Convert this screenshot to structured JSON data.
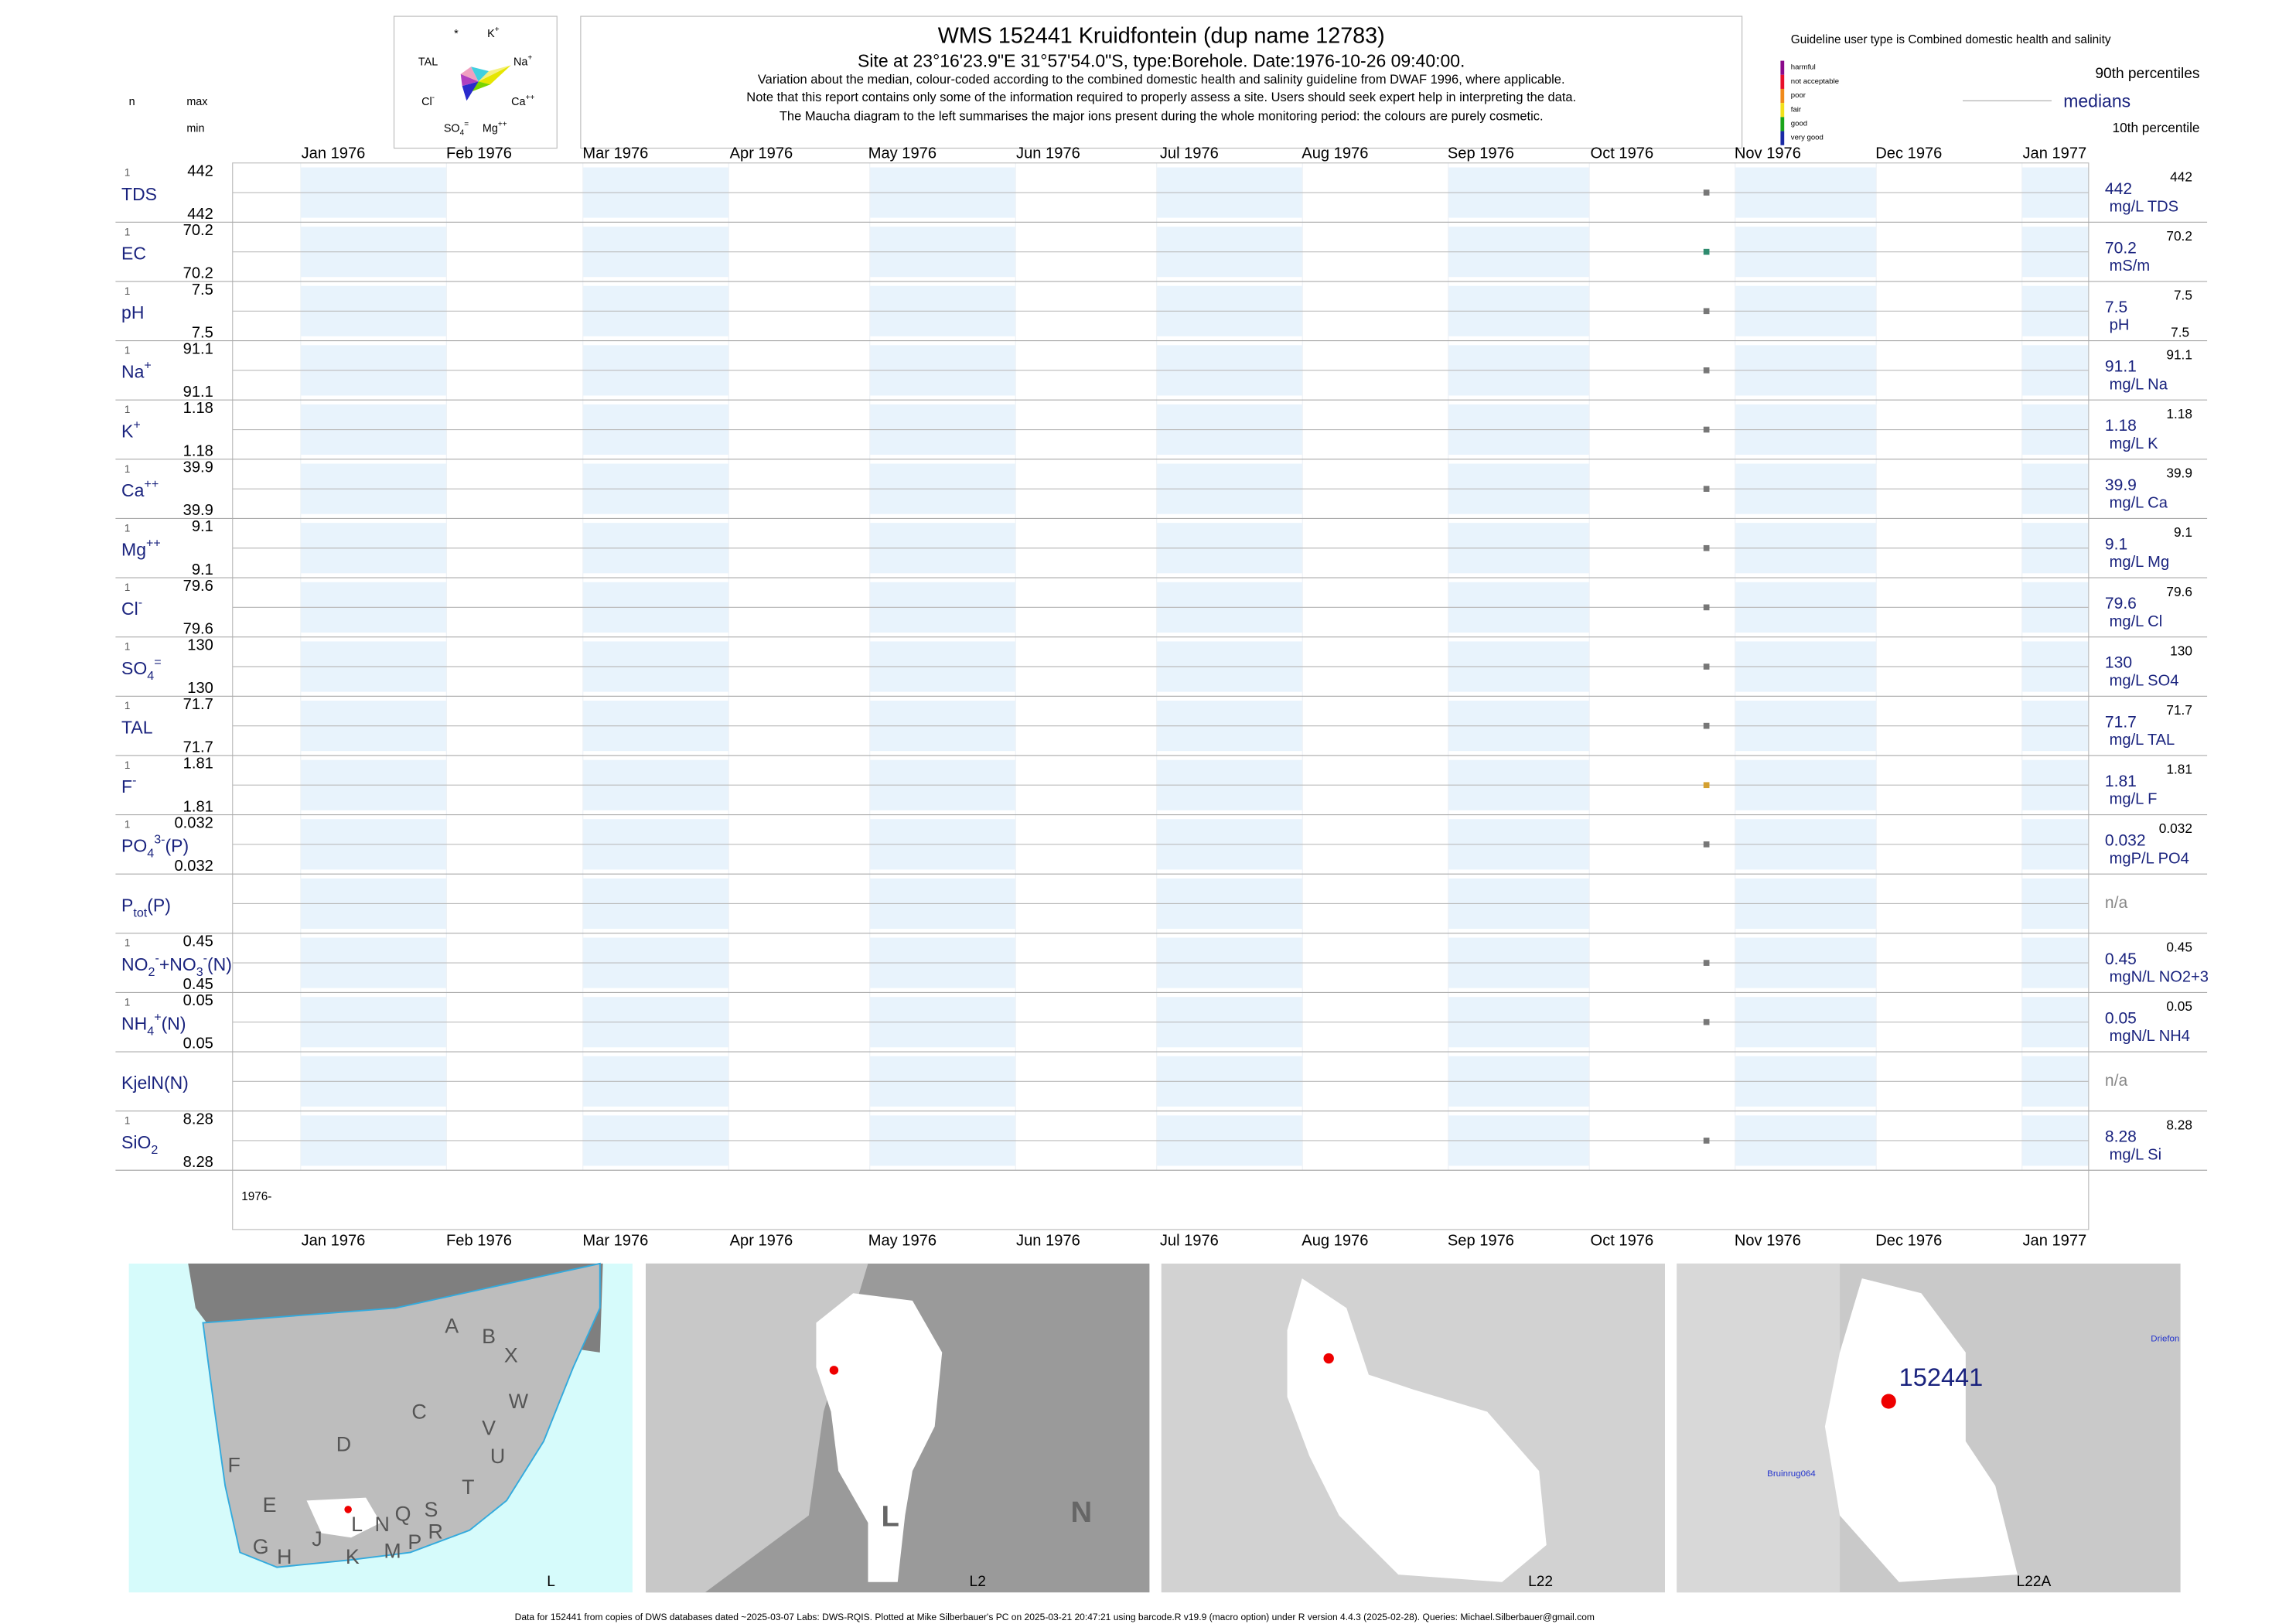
{
  "header": {
    "n_label": "n",
    "max_label": "max",
    "min_label": "min",
    "title": "WMS 152441  Kruidfontein (dup name 12783)",
    "site": "Site at 23°16'23.9\"E 31°57'54.0\"S, type:Borehole. Date:1976-10-26 09:40:00.",
    "notes": [
      "Variation about the median,  colour-coded according to the combined domestic health and salinity guideline from DWAF 1996, where applicable.",
      "Note that this report contains only some of the information required to properly assess a site. Users should seek expert help in interpreting the data.",
      "The Maucha diagram to the left summarises the major ions present during the whole monitoring period: the colours are purely cosmetic."
    ]
  },
  "maucha": {
    "labels": [
      [
        {
          "t": "*"
        }
      ],
      [
        {
          "t": "K"
        },
        {
          "t": "+",
          "v": "sup"
        }
      ],
      [
        {
          "t": "TAL"
        }
      ],
      [
        {
          "t": "Na"
        },
        {
          "t": "+",
          "v": "sup"
        }
      ],
      [
        {
          "t": "Cl"
        },
        {
          "t": "-",
          "v": "sup"
        }
      ],
      [
        {
          "t": "Ca"
        },
        {
          "t": "++",
          "v": "sup"
        }
      ],
      [
        {
          "t": "SO"
        },
        {
          "t": "4",
          "v": "sub"
        },
        {
          "t": "=",
          "v": "sup"
        }
      ],
      [
        {
          "t": "Mg"
        },
        {
          "t": "++",
          "v": "sup"
        }
      ]
    ]
  },
  "guideline": {
    "title": "Guideline user type is Combined domestic health and salinity",
    "classes": [
      {
        "label": "harmful",
        "color": "#8b0a8b"
      },
      {
        "label": "not acceptable",
        "color": "#e8102a"
      },
      {
        "label": "poor",
        "color": "#f08a1a"
      },
      {
        "label": "fair",
        "color": "#f2e01a"
      },
      {
        "label": "good",
        "color": "#1aa51a"
      },
      {
        "label": "very good",
        "color": "#1a2aa5"
      }
    ],
    "p90": "90th percentiles",
    "medians": "medians",
    "p10": "10th percentile"
  },
  "months": [
    "Jan 1976",
    "Feb 1976",
    "Mar 1976",
    "Apr 1976",
    "May 1976",
    "Jun 1976",
    "Jul 1976",
    "Aug 1976",
    "Sep 1976",
    "Oct 1976",
    "Nov 1976",
    "Dec 1976",
    "Jan 1977"
  ],
  "year_label": "1976-",
  "rows": [
    {
      "name": [
        {
          "t": "TDS"
        }
      ],
      "n": 1,
      "max": 442,
      "min": 442,
      "median": 442,
      "unit": "mg/L TDS",
      "right_max": 442,
      "color": "#777777"
    },
    {
      "name": [
        {
          "t": "EC"
        }
      ],
      "n": 1,
      "max": 70.2,
      "min": 70.2,
      "median": 70.2,
      "unit": "mS/m",
      "right_max": 70.2,
      "color": "#2e8b6e"
    },
    {
      "name": [
        {
          "t": "pH"
        }
      ],
      "n": 1,
      "max": 7.5,
      "min": 7.5,
      "median": 7.5,
      "unit": "pH",
      "right_max": 7.5,
      "right_min": 7.5,
      "color": "#777777"
    },
    {
      "name": [
        {
          "t": "Na"
        },
        {
          "t": "+",
          "v": "sup"
        }
      ],
      "n": 1,
      "max": 91.1,
      "min": 91.1,
      "median": 91.1,
      "unit": "mg/L Na",
      "right_max": 91.1,
      "color": "#777777"
    },
    {
      "name": [
        {
          "t": "K"
        },
        {
          "t": "+",
          "v": "sup"
        }
      ],
      "n": 1,
      "max": 1.18,
      "min": 1.18,
      "median": 1.18,
      "unit": "mg/L K",
      "right_max": 1.18,
      "color": "#777777"
    },
    {
      "name": [
        {
          "t": "Ca"
        },
        {
          "t": "++",
          "v": "sup"
        }
      ],
      "n": 1,
      "max": 39.9,
      "min": 39.9,
      "median": 39.9,
      "unit": "mg/L Ca",
      "right_max": 39.9,
      "color": "#777777"
    },
    {
      "name": [
        {
          "t": "Mg"
        },
        {
          "t": "++",
          "v": "sup"
        }
      ],
      "n": 1,
      "max": 9.1,
      "min": 9.1,
      "median": 9.1,
      "unit": "mg/L Mg",
      "right_max": 9.1,
      "color": "#777777"
    },
    {
      "name": [
        {
          "t": "Cl"
        },
        {
          "t": "-",
          "v": "sup"
        }
      ],
      "n": 1,
      "max": 79.6,
      "min": 79.6,
      "median": 79.6,
      "unit": "mg/L Cl",
      "right_max": 79.6,
      "color": "#777777"
    },
    {
      "name": [
        {
          "t": "SO"
        },
        {
          "t": "4",
          "v": "sub"
        },
        {
          "t": "=",
          "v": "sup"
        }
      ],
      "n": 1,
      "max": 130,
      "min": 130,
      "median": 130,
      "unit": "mg/L SO4",
      "right_max": 130,
      "color": "#777777"
    },
    {
      "name": [
        {
          "t": "TAL"
        }
      ],
      "n": 1,
      "max": 71.7,
      "min": 71.7,
      "median": 71.7,
      "unit": "mg/L TAL",
      "right_max": 71.7,
      "color": "#777777"
    },
    {
      "name": [
        {
          "t": "F"
        },
        {
          "t": "-",
          "v": "sup"
        }
      ],
      "n": 1,
      "max": 1.81,
      "min": 1.81,
      "median": 1.81,
      "unit": "mg/L F",
      "right_max": 1.81,
      "color": "#d4a030"
    },
    {
      "name": [
        {
          "t": "PO"
        },
        {
          "t": "4",
          "v": "sub"
        },
        {
          "t": "3-",
          "v": "sup"
        },
        {
          "t": "(P)"
        }
      ],
      "n": 1,
      "max": 0.032,
      "min": 0.032,
      "median": 0.032,
      "unit": "mgP/L PO4",
      "right_max": 0.032,
      "color": "#777777"
    },
    {
      "name": [
        {
          "t": "P"
        },
        {
          "t": "tot",
          "v": "sub"
        },
        {
          "t": "(P)"
        }
      ],
      "na": "n/a"
    },
    {
      "name": [
        {
          "t": "NO"
        },
        {
          "t": "2",
          "v": "sub"
        },
        {
          "t": "-",
          "v": "sup"
        },
        {
          "t": "+NO"
        },
        {
          "t": "3",
          "v": "sub"
        },
        {
          "t": "-",
          "v": "sup"
        },
        {
          "t": "(N)"
        }
      ],
      "n": 1,
      "max": 0.45,
      "min": 0.45,
      "median": 0.45,
      "unit": "mgN/L NO2+3",
      "right_max": 0.45,
      "color": "#777777"
    },
    {
      "name": [
        {
          "t": "NH"
        },
        {
          "t": "4",
          "v": "sub"
        },
        {
          "t": "+",
          "v": "sup"
        },
        {
          "t": "(N)"
        }
      ],
      "n": 1,
      "max": 0.05,
      "min": 0.05,
      "median": 0.05,
      "unit": "mgN/L NH4",
      "right_max": 0.05,
      "color": "#777777"
    },
    {
      "name": [
        {
          "t": "KjelN(N)"
        }
      ],
      "na": "n/a"
    },
    {
      "name": [
        {
          "t": "SiO"
        },
        {
          "t": "2",
          "v": "sub"
        }
      ],
      "n": 1,
      "max": 8.28,
      "min": 8.28,
      "median": 8.28,
      "unit": "mg/L Si",
      "right_max": 8.28,
      "color": "#777777"
    }
  ],
  "maps": [
    {
      "label": "L",
      "letters": [
        "A",
        "B",
        "X",
        "C",
        "W",
        "V",
        "U",
        "D",
        "T",
        "F",
        "E",
        "S",
        "R",
        "Q",
        "N",
        "P",
        "M",
        "L",
        "K",
        "J",
        "H",
        "G"
      ]
    },
    {
      "label": "L2",
      "letters": [
        "L",
        "N"
      ]
    },
    {
      "label": "L22"
    },
    {
      "label": "L22A",
      "site": "152441",
      "places": [
        "Bruinrug064",
        "Driefon"
      ]
    }
  ],
  "footer": "Data for 152441 from copies of DWS databases dated ~2025-03-07 Labs: DWS-RQIS. Plotted at Mike Silberbauer's PC on 2025-03-21 20:47:21 using barcode.R v19.9 (macro option) under R version 4.4.3 (2025-02-28). Queries: Michael.Silberbauer@gmail.com"
}
